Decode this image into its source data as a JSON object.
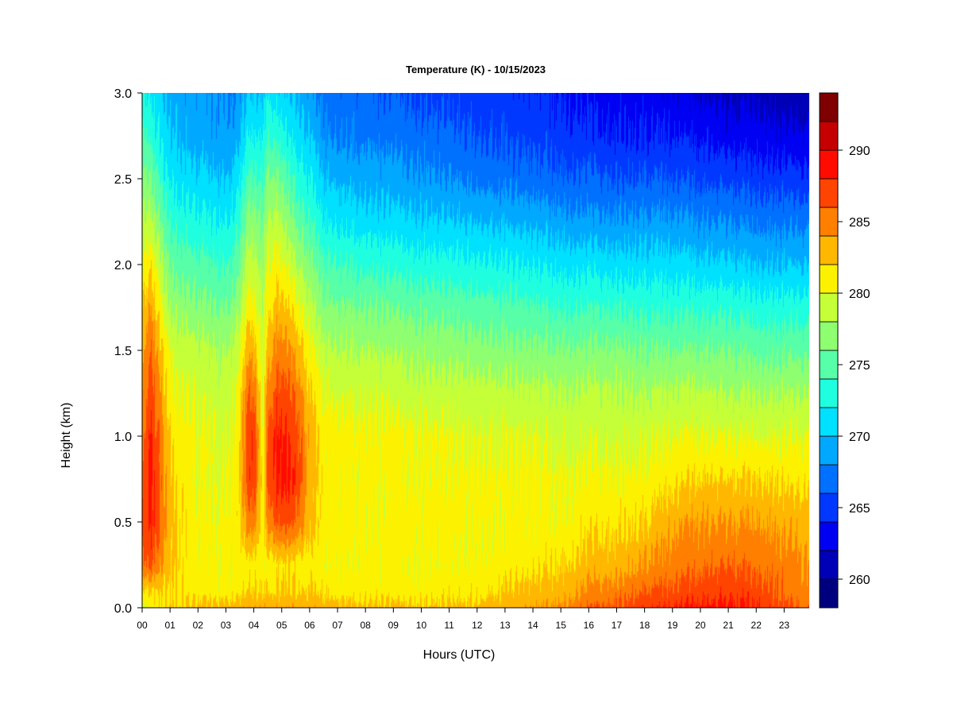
{
  "chart_data": {
    "type": "heatmap",
    "title": "Temperature (K) - 10/15/2023",
    "xlabel": "Hours (UTC)",
    "ylabel": "Height (km)",
    "x_ticks": [
      "00",
      "01",
      "02",
      "03",
      "04",
      "05",
      "06",
      "07",
      "08",
      "09",
      "10",
      "11",
      "12",
      "13",
      "14",
      "15",
      "16",
      "17",
      "18",
      "19",
      "20",
      "21",
      "22",
      "23"
    ],
    "y_ticks": [
      "0.0",
      "0.5",
      "1.0",
      "1.5",
      "2.0",
      "2.5",
      "3.0"
    ],
    "xlim": [
      0,
      23.9
    ],
    "ylim": [
      0,
      3.0
    ],
    "colorbar": {
      "min": 258,
      "max": 294,
      "step": 2,
      "ticks": [
        "260",
        "265",
        "270",
        "275",
        "280",
        "285",
        "290"
      ],
      "colors": [
        "#00007f",
        "#0000b7",
        "#0000f2",
        "#0038ff",
        "#0070ff",
        "#00a8ff",
        "#00e0ff",
        "#1fffdf",
        "#56ffa8",
        "#8eff70",
        "#c5ff38",
        "#fcf200",
        "#ffb700",
        "#ff7f00",
        "#ff4400",
        "#ff0b00",
        "#c40000",
        "#7f0000"
      ]
    },
    "grid": false,
    "legend": "colorbar-right",
    "temperature_grid": {
      "x": [
        0.0,
        0.3,
        0.6,
        1.0,
        2.0,
        3.0,
        3.4,
        3.8,
        4.0,
        4.3,
        4.5,
        4.8,
        5.2,
        5.6,
        6.0,
        6.5,
        8,
        10,
        12,
        13.5,
        15,
        16,
        17,
        18,
        19,
        20,
        21,
        22,
        23,
        23.9
      ],
      "y": [
        0.0,
        0.1,
        0.25,
        0.5,
        0.75,
        1.0,
        1.25,
        1.5,
        1.75,
        2.0,
        2.25,
        2.5,
        2.75,
        3.0
      ],
      "values": [
        [
          279.5,
          281.5,
          285.5,
          286.5,
          286.0,
          285.5,
          284.5,
          283.5,
          282.0,
          280.5,
          278.5,
          276.5,
          274.5,
          272.5
        ],
        [
          280.5,
          282.0,
          286.5,
          288.5,
          289.0,
          288.5,
          287.5,
          286.0,
          284.0,
          281.5,
          278.5,
          276.0,
          273.5,
          271.5
        ],
        [
          281.5,
          282.0,
          284.5,
          286.5,
          286.0,
          285.5,
          284.5,
          283.0,
          281.0,
          279.0,
          276.5,
          274.0,
          272.0,
          270.5
        ],
        [
          282.0,
          281.5,
          282.5,
          282.5,
          282.0,
          281.5,
          280.5,
          279.5,
          277.5,
          275.5,
          273.5,
          271.5,
          270.0,
          269.0
        ],
        [
          282.5,
          281.0,
          280.5,
          280.5,
          280.0,
          280.0,
          279.5,
          278.5,
          276.5,
          274.5,
          272.5,
          270.5,
          269.0,
          268.5
        ],
        [
          283.0,
          281.0,
          280.5,
          280.5,
          280.0,
          280.0,
          279.0,
          278.0,
          276.0,
          274.0,
          272.0,
          270.0,
          268.5,
          268.0
        ],
        [
          283.0,
          281.0,
          280.5,
          281.0,
          281.0,
          280.5,
          280.0,
          279.0,
          277.0,
          275.0,
          273.0,
          271.0,
          269.0,
          268.0
        ],
        [
          283.5,
          282.0,
          281.0,
          285.0,
          287.0,
          287.5,
          286.0,
          283.5,
          281.0,
          279.0,
          277.0,
          274.5,
          272.0,
          270.0
        ],
        [
          283.5,
          282.0,
          281.0,
          285.0,
          287.5,
          287.5,
          285.5,
          283.0,
          280.5,
          279.0,
          277.0,
          274.5,
          272.0,
          270.0
        ],
        [
          283.5,
          282.0,
          280.5,
          281.0,
          281.0,
          280.5,
          280.0,
          279.5,
          278.5,
          277.5,
          276.0,
          274.0,
          272.0,
          270.0
        ],
        [
          283.5,
          282.0,
          281.0,
          285.0,
          287.0,
          286.5,
          285.0,
          283.0,
          281.5,
          280.0,
          278.5,
          276.5,
          274.0,
          272.0
        ],
        [
          283.5,
          282.0,
          281.5,
          286.5,
          288.5,
          288.5,
          287.0,
          285.0,
          283.0,
          281.0,
          279.0,
          276.5,
          273.5,
          271.0
        ],
        [
          283.5,
          282.0,
          281.5,
          286.5,
          288.5,
          288.0,
          286.5,
          284.5,
          282.0,
          279.5,
          277.0,
          274.5,
          272.0,
          270.0
        ],
        [
          283.5,
          282.0,
          281.0,
          285.5,
          287.0,
          286.5,
          285.0,
          283.0,
          280.5,
          278.0,
          275.5,
          273.0,
          271.0,
          269.5
        ],
        [
          283.5,
          282.0,
          281.0,
          282.5,
          283.0,
          283.0,
          282.0,
          280.5,
          278.5,
          276.5,
          274.0,
          272.0,
          270.0,
          268.5
        ],
        [
          283.0,
          281.5,
          280.5,
          281.0,
          281.0,
          281.0,
          280.0,
          278.5,
          276.5,
          274.5,
          272.0,
          270.0,
          268.0,
          267.0
        ],
        [
          282.5,
          281.0,
          280.5,
          280.5,
          280.5,
          280.5,
          279.5,
          278.0,
          276.0,
          273.5,
          271.0,
          269.0,
          267.5,
          266.5
        ],
        [
          282.5,
          281.0,
          280.5,
          281.0,
          280.5,
          280.5,
          279.0,
          277.5,
          275.5,
          273.0,
          270.5,
          268.5,
          267.0,
          265.5
        ],
        [
          282.5,
          281.5,
          280.5,
          280.5,
          280.5,
          280.0,
          279.0,
          277.0,
          275.0,
          272.5,
          270.0,
          267.5,
          266.0,
          265.0
        ],
        [
          283.5,
          282.5,
          281.0,
          280.5,
          280.5,
          280.0,
          278.5,
          276.5,
          274.5,
          272.0,
          269.5,
          267.0,
          265.5,
          264.5
        ],
        [
          284.5,
          283.0,
          282.0,
          280.5,
          280.5,
          279.5,
          278.5,
          276.5,
          274.0,
          271.5,
          269.0,
          266.5,
          265.0,
          264.0
        ],
        [
          286.0,
          284.5,
          283.0,
          281.5,
          280.5,
          279.5,
          278.5,
          276.5,
          274.0,
          271.5,
          268.5,
          266.5,
          264.5,
          263.5
        ],
        [
          286.5,
          285.0,
          283.0,
          281.5,
          280.5,
          279.5,
          278.5,
          276.5,
          274.0,
          271.0,
          268.5,
          266.0,
          264.0,
          263.0
        ],
        [
          287.5,
          286.0,
          284.0,
          282.0,
          280.5,
          279.5,
          278.0,
          276.0,
          273.5,
          271.0,
          268.5,
          266.0,
          264.0,
          263.0
        ],
        [
          288.0,
          286.5,
          285.0,
          283.5,
          281.5,
          280.0,
          278.5,
          276.0,
          273.5,
          271.0,
          268.5,
          266.0,
          264.0,
          262.5
        ],
        [
          288.5,
          287.0,
          285.5,
          284.0,
          282.0,
          280.0,
          278.5,
          276.0,
          273.5,
          270.5,
          268.0,
          265.5,
          263.5,
          262.0
        ],
        [
          288.5,
          287.5,
          286.0,
          284.0,
          282.0,
          280.0,
          278.0,
          276.0,
          273.5,
          270.5,
          268.0,
          265.5,
          263.0,
          261.5
        ],
        [
          288.0,
          287.0,
          285.5,
          284.0,
          282.0,
          280.0,
          278.0,
          275.5,
          273.0,
          270.0,
          267.5,
          265.0,
          263.0,
          261.5
        ],
        [
          286.5,
          285.5,
          285.0,
          283.5,
          281.5,
          280.0,
          278.0,
          275.5,
          273.0,
          270.0,
          267.5,
          265.0,
          262.5,
          261.0
        ],
        [
          285.5,
          284.5,
          284.0,
          283.0,
          281.5,
          280.0,
          278.0,
          275.5,
          273.0,
          270.0,
          267.5,
          264.5,
          262.5,
          260.5
        ]
      ]
    }
  }
}
